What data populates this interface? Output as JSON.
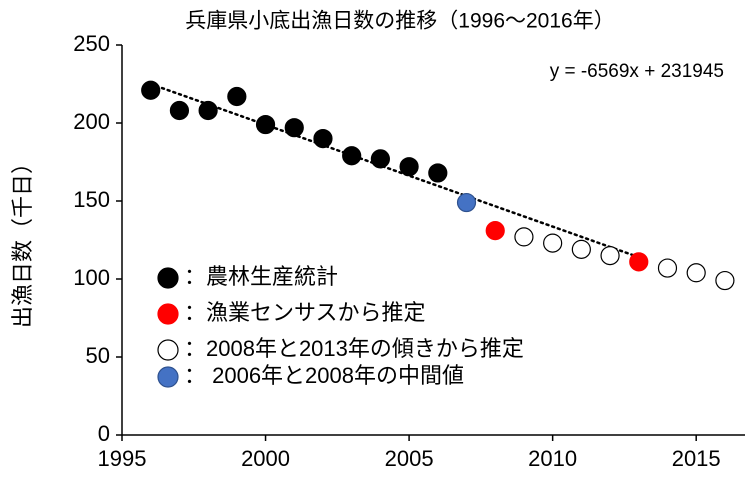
{
  "chart_data": {
    "type": "scatter",
    "title": "兵庫県小底出漁日数の推移（1996～2016年）",
    "y_label": "出漁日数（千日）",
    "annotation": "y = -6569x + 231945",
    "xlim": [
      1995,
      2016.7
    ],
    "xticks": [
      1995,
      2000,
      2005,
      2010,
      2015
    ],
    "ylim": [
      0,
      250
    ],
    "yticks": [
      0,
      50,
      100,
      150,
      200,
      250
    ],
    "grid": false,
    "series": [
      {
        "name": "：農林生産統計",
        "color": "#000000",
        "edgecolor": "#000000",
        "x": [
          1996,
          1997,
          1998,
          1999,
          2000,
          2001,
          2002,
          2003,
          2004,
          2005,
          2006
        ],
        "values": [
          221,
          208,
          208,
          217,
          199,
          197,
          190,
          179,
          177,
          172,
          168
        ]
      },
      {
        "name": "：漁業センサスから推定",
        "color": "#ff0000",
        "edgecolor": "#ff0000",
        "x": [
          2008,
          2013
        ],
        "values": [
          131,
          111
        ]
      },
      {
        "name": "：2008年と2013年の傾きから推定",
        "color": "#ffffff",
        "edgecolor": "#000000",
        "x": [
          2009,
          2010,
          2011,
          2012,
          2014,
          2015,
          2016
        ],
        "values": [
          127,
          123,
          119,
          115,
          107,
          104,
          99
        ]
      },
      {
        "name": "： 2006年と2008年の中間値",
        "color": "#4472c4",
        "edgecolor": "#2f528f",
        "x": [
          2007
        ],
        "values": [
          149
        ]
      }
    ],
    "trendline": {
      "x": [
        1996,
        2013
      ],
      "values": [
        225,
        114
      ],
      "color": "#000000"
    }
  }
}
